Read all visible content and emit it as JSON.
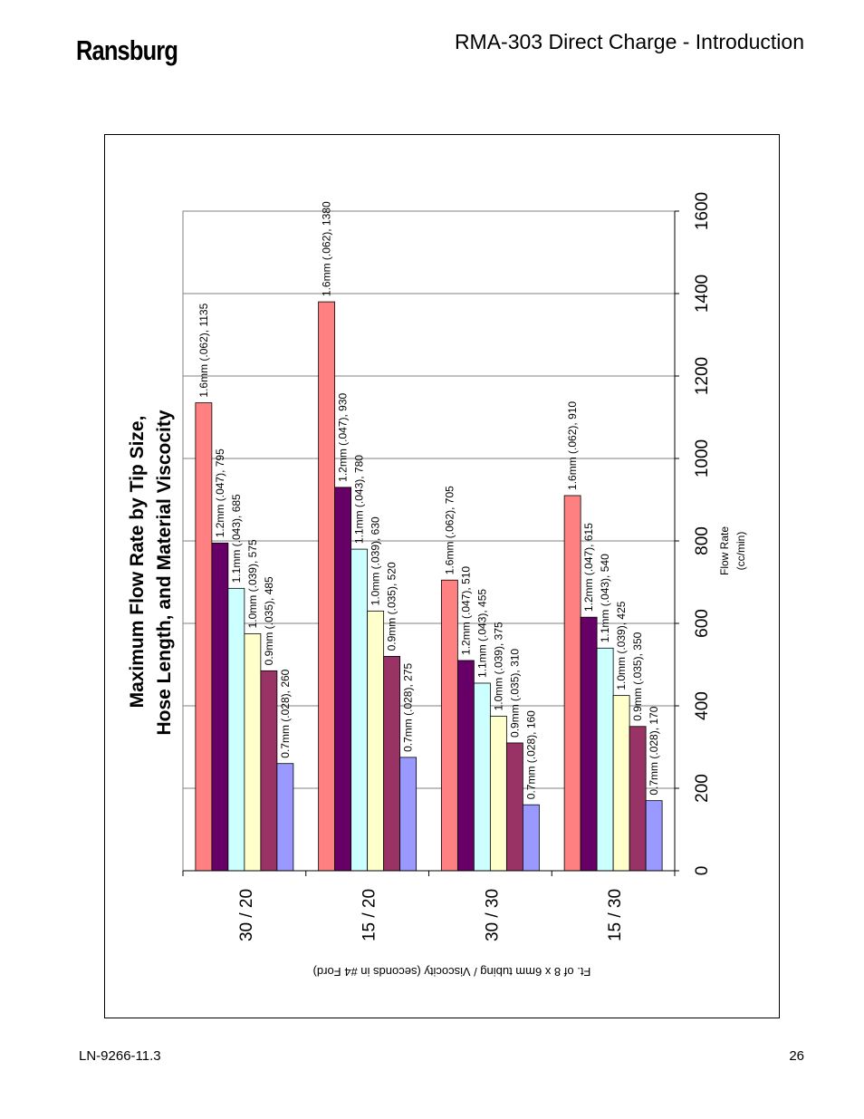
{
  "header": {
    "logo": "Ransburg",
    "title": "RMA-303 Direct Charge - Introduction"
  },
  "footer": {
    "doc_number": "LN-9266-11.3",
    "page_number": "26"
  },
  "colors": {
    "series": [
      "#FF8080",
      "#660066",
      "#CCFFFF",
      "#FFFFCC",
      "#993366",
      "#9999FF"
    ]
  },
  "chart_data": {
    "type": "bar",
    "orientation": "horizontal (page rotated 90°)",
    "title_line1": "Maximum Flow Rate by Tip Size,",
    "title_line2": "Hose Length, and Material Viscocity",
    "xlabel": "Ft. of 8 x 6mm tubing / Viscocity (seconds in #4 Ford)",
    "ylabel_line1": "Flow Rate",
    "ylabel_line2": "(cc/min)",
    "categories": [
      "30 / 20",
      "15 / 20",
      "30 / 30",
      "15 / 30"
    ],
    "ylim": [
      0,
      1600
    ],
    "yticks": [
      0,
      200,
      400,
      600,
      800,
      1000,
      1200,
      1400,
      1600
    ],
    "grid": true,
    "series": [
      {
        "values": [
          1135,
          1380,
          705,
          910
        ]
      },
      {
        "values": [
          795,
          930,
          510,
          615
        ]
      },
      {
        "values": [
          685,
          780,
          455,
          540
        ]
      },
      {
        "values": [
          575,
          630,
          375,
          425
        ]
      },
      {
        "values": [
          485,
          520,
          310,
          350
        ]
      },
      {
        "values": [
          260,
          275,
          160,
          170
        ]
      }
    ],
    "data_labels": [
      [
        "1.6mm (.062), 1135",
        "1.2mm (.047), 795",
        "1.1mm (.043), 685",
        "1.0mm (.039), 575",
        "0.9mm (.035), 485",
        "0.7mm (.028), 260"
      ],
      [
        "1.6mm (.062), 1380",
        "1.2mm (.047), 930",
        "1.1mm (.043), 780",
        "1.0mm (.039), 630",
        "0.9mm (.035), 520",
        "0.7mm (.028), 275"
      ],
      [
        "1.6mm (.062), 705",
        "1.2mm (.047), 510",
        "1.1mm (.043), 455",
        "1.0mm (.039), 375",
        "0.9mm (.035), 310",
        "0.7mm (.028), 160"
      ],
      [
        "1.6mm (.062), 910",
        "1.2mm (.047), 615",
        "1.1mm (.043), 540",
        "1.0mm (.039), 425",
        "0.9mm (.035), 350",
        "0.7mm (.028), 170"
      ]
    ]
  }
}
